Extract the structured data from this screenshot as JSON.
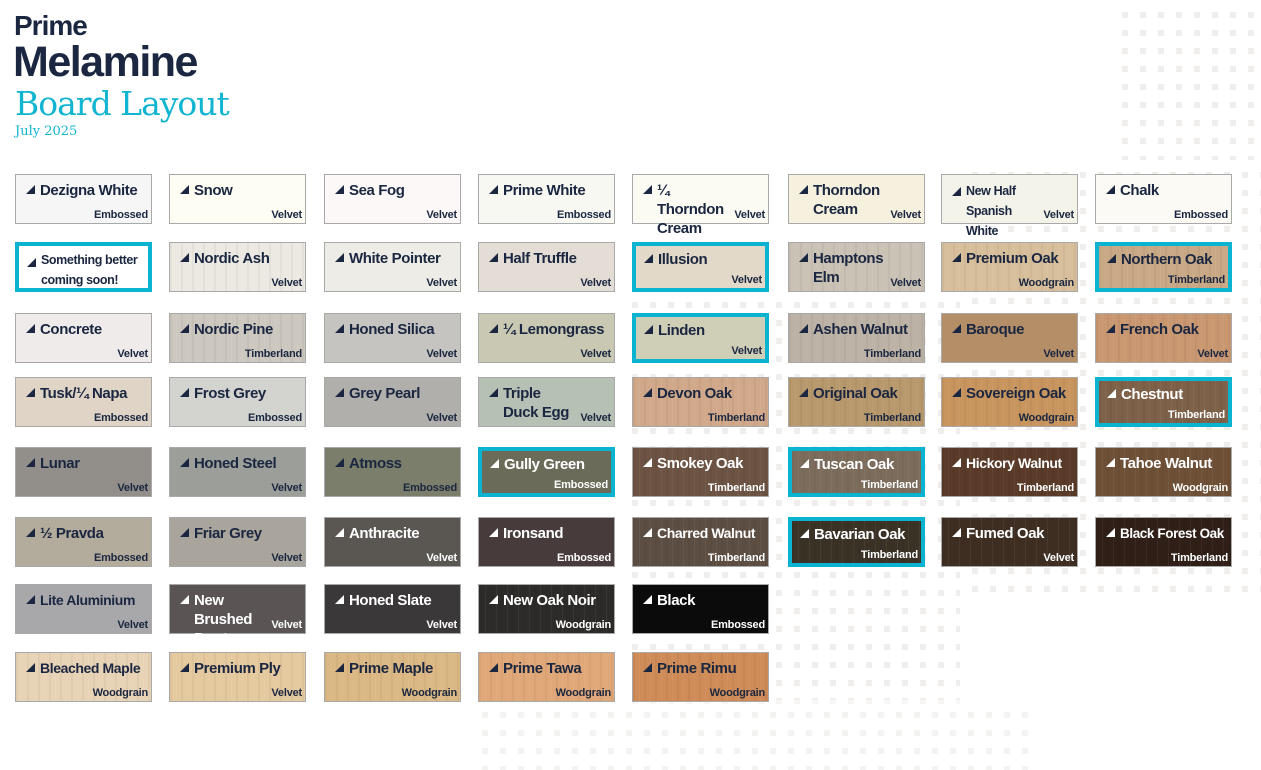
{
  "header": {
    "brand_line1": "Prime",
    "brand_line2": "Melamine",
    "title": "Board Layout",
    "date": "July 2025"
  },
  "colors": {
    "brand_navy": "#1b2740",
    "accent_teal": "#0ab4d1"
  },
  "rows": [
    [
      {
        "name": "Dezigna White",
        "finish": "Embossed",
        "color": "#f6f6f7"
      },
      {
        "name": "Snow",
        "finish": "Velvet",
        "color": "#fefdf3"
      },
      {
        "name": "Sea Fog",
        "finish": "Velvet",
        "color": "#fbf8f7"
      },
      {
        "name": "Prime White",
        "finish": "Embossed",
        "color": "#f7f8f2"
      },
      {
        "name": "¼ Thorndon Cream",
        "finish": "Velvet",
        "color": "#fbfaf3"
      },
      {
        "name": "Thorndon Cream",
        "finish": "Velvet",
        "color": "#f5f1de"
      },
      {
        "name": "New Half Spanish White",
        "finish": "Velvet",
        "color": "#f4f3e9"
      },
      {
        "name": "Chalk",
        "finish": "Embossed",
        "color": "#fbfaf4"
      }
    ],
    [
      {
        "name": "Something better coming soon!",
        "finish": "",
        "color": "#ffffff",
        "highlight": true
      },
      {
        "name": "Nordic Ash",
        "finish": "Velvet",
        "color": "#ece9e2"
      },
      {
        "name": "White Pointer",
        "finish": "Velvet",
        "color": "#eeece6"
      },
      {
        "name": "Half Truffle",
        "finish": "Velvet",
        "color": "#e3ddd6"
      },
      {
        "name": "Illusion",
        "finish": "Velvet",
        "color": "#e3d9c8",
        "highlight": true
      },
      {
        "name": "Hamptons Elm",
        "finish": "Velvet",
        "color": "#cbc2b6"
      },
      {
        "name": "Premium Oak",
        "finish": "Woodgrain",
        "color": "#d8bf9c"
      },
      {
        "name": "Northern Oak",
        "finish": "Timberland",
        "color": "#c9a985",
        "highlight": true
      }
    ],
    [
      {
        "name": "Concrete",
        "finish": "Velvet",
        "color": "#eeebea"
      },
      {
        "name": "Nordic Pine",
        "finish": "Timberland",
        "color": "#ccc8c0"
      },
      {
        "name": "Honed Silica",
        "finish": "Velvet",
        "color": "#c6c4c0"
      },
      {
        "name": "¼ Lemongrass",
        "finish": "Velvet",
        "color": "#c9c8b2"
      },
      {
        "name": "Linden",
        "finish": "Velvet",
        "color": "#cfcfb7",
        "highlight": true
      },
      {
        "name": "Ashen Walnut",
        "finish": "Timberland",
        "color": "#bcb2a5"
      },
      {
        "name": "Baroque",
        "finish": "Velvet",
        "color": "#b48e67"
      },
      {
        "name": "French Oak",
        "finish": "Velvet",
        "color": "#c99871"
      }
    ],
    [
      {
        "name": "Tusk/¼ Napa",
        "finish": "Embossed",
        "color": "#dfd4c6"
      },
      {
        "name": "Frost Grey",
        "finish": "Embossed",
        "color": "#d3d4d0"
      },
      {
        "name": "Grey Pearl",
        "finish": "Velvet",
        "color": "#b1afac"
      },
      {
        "name": "Triple Duck Egg",
        "finish": "Velvet",
        "color": "#b6c0b5"
      },
      {
        "name": "Devon Oak",
        "finish": "Timberland",
        "color": "#d1a98a"
      },
      {
        "name": "Original Oak",
        "finish": "Timberland",
        "color": "#b8986d"
      },
      {
        "name": "Sovereign Oak",
        "finish": "Woodgrain",
        "color": "#c8955f"
      },
      {
        "name": "Chestnut",
        "finish": "Timberland",
        "color": "#7d6149",
        "highlight": true,
        "light_text": true
      }
    ],
    [
      {
        "name": "Lunar",
        "finish": "Velvet",
        "color": "#928e8a"
      },
      {
        "name": "Honed Steel",
        "finish": "Velvet",
        "color": "#9c9e99"
      },
      {
        "name": "Atmoss",
        "finish": "Embossed",
        "color": "#7b7e6a"
      },
      {
        "name": "Gully Green",
        "finish": "Embossed",
        "color": "#6a6b58",
        "highlight": true,
        "light_text": true
      },
      {
        "name": "Smokey Oak",
        "finish": "Timberland",
        "color": "#6c5343",
        "light_text": true
      },
      {
        "name": "Tuscan Oak",
        "finish": "Timberland",
        "color": "#7c6c5c",
        "highlight": true,
        "light_text": true
      },
      {
        "name": "Hickory Walnut",
        "finish": "Timberland",
        "color": "#5a3a28",
        "light_text": true
      },
      {
        "name": "Tahoe Walnut",
        "finish": "Woodgrain",
        "color": "#6e5037",
        "light_text": true
      }
    ],
    [
      {
        "name": "½ Pravda",
        "finish": "Embossed",
        "color": "#b3ab9b"
      },
      {
        "name": "Friar Grey",
        "finish": "Velvet",
        "color": "#a9a49c"
      },
      {
        "name": "Anthracite",
        "finish": "Velvet",
        "color": "#5a5753",
        "light_text": true
      },
      {
        "name": "Ironsand",
        "finish": "Embossed",
        "color": "#473b3c",
        "light_text": true
      },
      {
        "name": "Charred Walnut",
        "finish": "Timberland",
        "color": "#5d4e43",
        "light_text": true
      },
      {
        "name": "Bavarian Oak",
        "finish": "Timberland",
        "color": "#3b3226",
        "highlight": true,
        "light_text": true
      },
      {
        "name": "Fumed Oak",
        "finish": "Velvet",
        "color": "#3e2e22",
        "light_text": true
      },
      {
        "name": "Black Forest Oak",
        "finish": "Timberland",
        "color": "#2f1f17",
        "light_text": true
      }
    ],
    [
      {
        "name": "Lite Aluminium",
        "finish": "Velvet",
        "color": "#a8a8aa"
      },
      {
        "name": "New Brushed Pewter",
        "finish": "Velvet",
        "color": "#5b5454",
        "light_text": true
      },
      {
        "name": "Honed Slate",
        "finish": "Velvet",
        "color": "#3a3839",
        "light_text": true
      },
      {
        "name": "New Oak Noir",
        "finish": "Woodgrain",
        "color": "#2c2b2a",
        "light_text": true
      },
      {
        "name": "Black",
        "finish": "Embossed",
        "color": "#0b0b0b",
        "light_text": true
      }
    ],
    [
      {
        "name": "Bleached Maple",
        "finish": "Woodgrain",
        "color": "#e8d3b6"
      },
      {
        "name": "Premium Ply",
        "finish": "Velvet",
        "color": "#e5c99f"
      },
      {
        "name": "Prime Maple",
        "finish": "Woodgrain",
        "color": "#dcb884"
      },
      {
        "name": "Prime Tawa",
        "finish": "Woodgrain",
        "color": "#e0a878"
      },
      {
        "name": "Prime Rimu",
        "finish": "Woodgrain",
        "color": "#cf8c58"
      }
    ]
  ]
}
